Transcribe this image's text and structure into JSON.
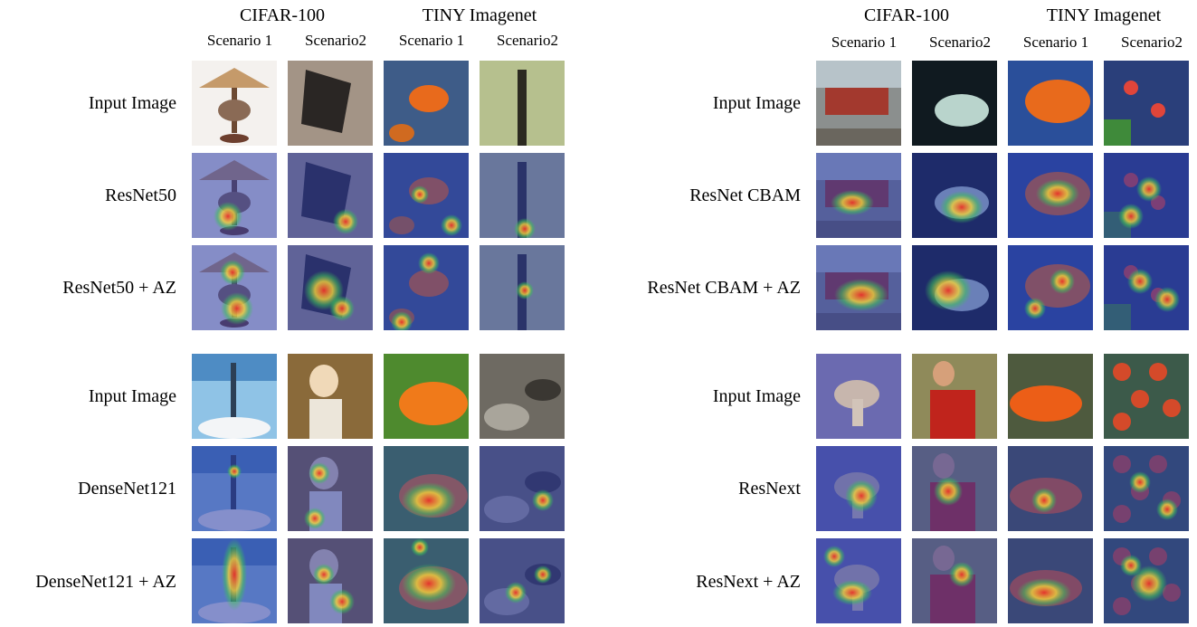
{
  "figure": {
    "left": {
      "datasets": [
        {
          "name": "CIFAR-100",
          "scenarios": [
            "Scenario 1",
            "Scenario2"
          ]
        },
        {
          "name": "TINY Imagenet",
          "scenarios": [
            "Scenario 1",
            "Scenario2"
          ]
        }
      ],
      "blocks": [
        {
          "rows": [
            "Input  Image",
            "ResNet50",
            "ResNet50 + AZ"
          ]
        },
        {
          "rows": [
            "Input Image",
            "DenseNet121",
            "DenseNet121 + AZ"
          ]
        }
      ]
    },
    "right": {
      "datasets": [
        {
          "name": "CIFAR-100",
          "scenarios": [
            "Scenario 1",
            "Scenario2"
          ]
        },
        {
          "name": "TINY Imagenet",
          "scenarios": [
            "Scenario 1",
            "Scenario2"
          ]
        }
      ],
      "blocks": [
        {
          "rows": [
            "Input Image",
            "ResNet CBAM",
            "ResNet CBAM + AZ"
          ]
        },
        {
          "rows": [
            "Input Image",
            "ResNext",
            "ResNext + AZ"
          ]
        }
      ]
    }
  },
  "colors": {
    "heat_low": "#2a3aa8",
    "heat_mid": "#3fbf5a",
    "heat_high": "#e8322a",
    "sky": "#8fc3e6",
    "goldfish": "#e86a1c"
  }
}
